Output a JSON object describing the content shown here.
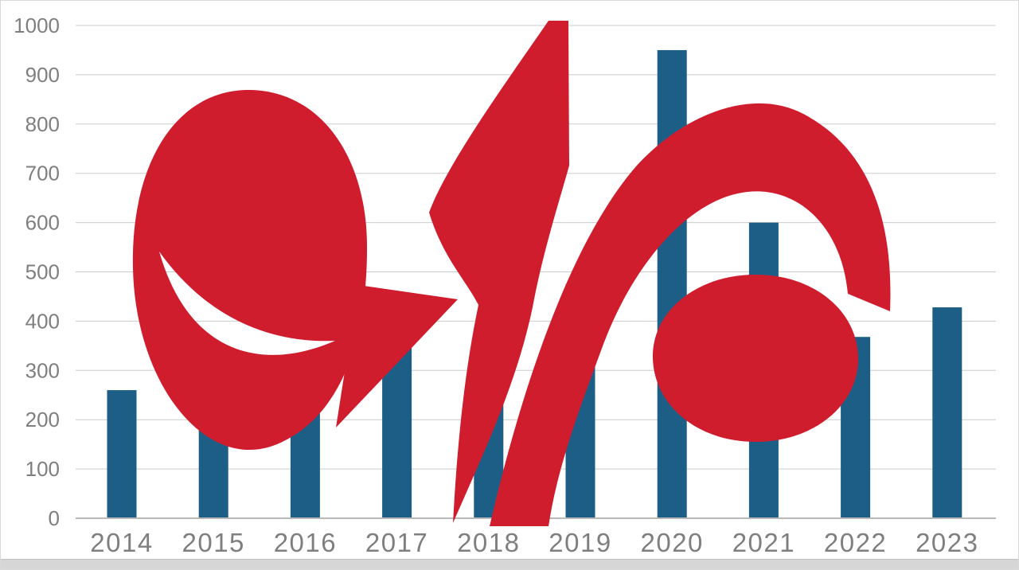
{
  "page": {
    "frame_border_color": "#d9d9d9",
    "bottom_strip_color": "#d6d6d6",
    "background_color": "#ffffff"
  },
  "watermark": {
    "name": "mehr-news-logo-watermark",
    "color": "#d01d2e",
    "opacity": "0.17"
  },
  "chart_data": {
    "type": "bar",
    "title": "",
    "xlabel": "",
    "ylabel": "",
    "categories": [
      "2014",
      "2015",
      "2016",
      "2017",
      "2018",
      "2019",
      "2020",
      "2021",
      "2022",
      "2023"
    ],
    "values": [
      260,
      235,
      282,
      408,
      300,
      475,
      950,
      600,
      368,
      428
    ],
    "ylim": [
      0,
      1000
    ],
    "yticks": [
      0,
      100,
      200,
      300,
      400,
      500,
      600,
      700,
      800,
      900,
      1000
    ],
    "grid": true,
    "legend": false,
    "bar_color": "#1d5e86",
    "gridline_color": "#cbcbcb",
    "axis_line_color": "#b9b9b9",
    "tick_label_color": "#7f7f7f"
  }
}
